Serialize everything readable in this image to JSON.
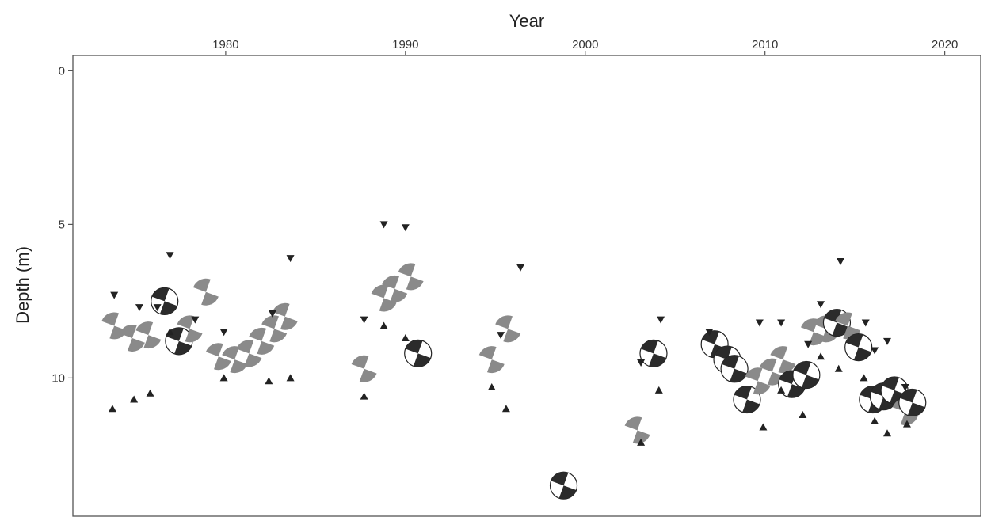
{
  "chart_data": {
    "type": "scatter",
    "title": "",
    "xlabel": "Year",
    "ylabel": "Depth (m)",
    "xlim": [
      1971.5,
      2022
    ],
    "ylim": [
      14.5,
      -0.5
    ],
    "y_inverted": true,
    "x_axis_position": "top",
    "grid": false,
    "legend": "none",
    "x_ticks": [
      1980,
      1990,
      2000,
      2010,
      2020
    ],
    "x_tick_labels": [
      "1980",
      "1990",
      "2000",
      "2010",
      "2020"
    ],
    "y_ticks": [
      0,
      5,
      10
    ],
    "y_tick_labels": [
      "0",
      "5",
      "10"
    ],
    "colors": {
      "dark": "#2b2b2b",
      "grey": "#8a8a8a",
      "marker": "#222222"
    },
    "series": [
      {
        "marker": "focal-mechanism",
        "points": [
          {
            "x": 1973.8,
            "y": 8.3,
            "style": "grey"
          },
          {
            "x": 1974.8,
            "y": 8.7,
            "style": "grey"
          },
          {
            "x": 1975.7,
            "y": 8.6,
            "style": "grey"
          },
          {
            "x": 1976.6,
            "y": 7.5,
            "style": "dark"
          },
          {
            "x": 1977.4,
            "y": 8.8,
            "style": "dark"
          },
          {
            "x": 1978.0,
            "y": 8.4,
            "style": "grey"
          },
          {
            "x": 1978.9,
            "y": 7.2,
            "style": "grey"
          },
          {
            "x": 1979.6,
            "y": 9.3,
            "style": "grey"
          },
          {
            "x": 1980.5,
            "y": 9.4,
            "style": "grey"
          },
          {
            "x": 1981.3,
            "y": 9.2,
            "style": "grey"
          },
          {
            "x": 1982.0,
            "y": 8.8,
            "style": "grey"
          },
          {
            "x": 1982.7,
            "y": 8.4,
            "style": "grey"
          },
          {
            "x": 1983.3,
            "y": 8.0,
            "style": "grey"
          },
          {
            "x": 1987.7,
            "y": 9.7,
            "style": "grey"
          },
          {
            "x": 1988.8,
            "y": 7.4,
            "style": "grey"
          },
          {
            "x": 1989.4,
            "y": 7.1,
            "style": "grey"
          },
          {
            "x": 1990.3,
            "y": 6.7,
            "style": "grey"
          },
          {
            "x": 1990.7,
            "y": 9.2,
            "style": "dark"
          },
          {
            "x": 1994.8,
            "y": 9.4,
            "style": "grey"
          },
          {
            "x": 1995.7,
            "y": 8.4,
            "style": "grey"
          },
          {
            "x": 1998.8,
            "y": 13.5,
            "style": "dark"
          },
          {
            "x": 2002.9,
            "y": 11.7,
            "style": "grey"
          },
          {
            "x": 2003.8,
            "y": 9.2,
            "style": "dark"
          },
          {
            "x": 2007.2,
            "y": 8.9,
            "style": "dark"
          },
          {
            "x": 2007.9,
            "y": 9.4,
            "style": "dark"
          },
          {
            "x": 2008.3,
            "y": 9.7,
            "style": "dark"
          },
          {
            "x": 2009.0,
            "y": 10.7,
            "style": "dark"
          },
          {
            "x": 2009.6,
            "y": 10.1,
            "style": "grey"
          },
          {
            "x": 2010.4,
            "y": 9.8,
            "style": "grey"
          },
          {
            "x": 2011.0,
            "y": 9.4,
            "style": "grey"
          },
          {
            "x": 2011.5,
            "y": 10.2,
            "style": "dark"
          },
          {
            "x": 2012.3,
            "y": 9.9,
            "style": "dark"
          },
          {
            "x": 2012.7,
            "y": 8.5,
            "style": "grey"
          },
          {
            "x": 2013.4,
            "y": 8.4,
            "style": "grey"
          },
          {
            "x": 2014.0,
            "y": 8.2,
            "style": "dark"
          },
          {
            "x": 2014.6,
            "y": 8.3,
            "style": "grey"
          },
          {
            "x": 2015.2,
            "y": 9.0,
            "style": "dark"
          },
          {
            "x": 2016.0,
            "y": 10.7,
            "style": "dark"
          },
          {
            "x": 2016.6,
            "y": 10.6,
            "style": "dark"
          },
          {
            "x": 2017.2,
            "y": 10.4,
            "style": "dark"
          },
          {
            "x": 2017.8,
            "y": 11.1,
            "style": "grey"
          },
          {
            "x": 2018.2,
            "y": 10.8,
            "style": "dark"
          }
        ]
      },
      {
        "marker": "triangle-down",
        "points": [
          {
            "x": 1973.8,
            "y": 7.3
          },
          {
            "x": 1975.2,
            "y": 7.7
          },
          {
            "x": 1976.2,
            "y": 7.7
          },
          {
            "x": 1976.9,
            "y": 6.0
          },
          {
            "x": 1978.3,
            "y": 8.1
          },
          {
            "x": 1979.9,
            "y": 8.5
          },
          {
            "x": 1982.6,
            "y": 7.9
          },
          {
            "x": 1983.6,
            "y": 6.1
          },
          {
            "x": 1987.7,
            "y": 8.1
          },
          {
            "x": 1988.8,
            "y": 5.0
          },
          {
            "x": 1990.0,
            "y": 5.1
          },
          {
            "x": 1995.3,
            "y": 8.6
          },
          {
            "x": 1996.4,
            "y": 6.4
          },
          {
            "x": 2003.1,
            "y": 9.5
          },
          {
            "x": 2004.2,
            "y": 8.1
          },
          {
            "x": 2006.9,
            "y": 8.5
          },
          {
            "x": 2009.7,
            "y": 8.2
          },
          {
            "x": 2010.9,
            "y": 8.2
          },
          {
            "x": 2012.4,
            "y": 8.9
          },
          {
            "x": 2013.1,
            "y": 7.6
          },
          {
            "x": 2014.2,
            "y": 6.2
          },
          {
            "x": 2015.6,
            "y": 8.2
          },
          {
            "x": 2016.1,
            "y": 9.1
          },
          {
            "x": 2016.8,
            "y": 8.8
          },
          {
            "x": 2017.8,
            "y": 10.3
          }
        ]
      },
      {
        "marker": "triangle-up",
        "points": [
          {
            "x": 1973.7,
            "y": 11.0
          },
          {
            "x": 1974.9,
            "y": 10.7
          },
          {
            "x": 1975.8,
            "y": 10.5
          },
          {
            "x": 1976.9,
            "y": 8.5
          },
          {
            "x": 1979.9,
            "y": 10.0
          },
          {
            "x": 1982.4,
            "y": 10.1
          },
          {
            "x": 1983.6,
            "y": 10.0
          },
          {
            "x": 1987.7,
            "y": 10.6
          },
          {
            "x": 1988.8,
            "y": 8.3
          },
          {
            "x": 1990.0,
            "y": 8.7
          },
          {
            "x": 1994.8,
            "y": 10.3
          },
          {
            "x": 1995.6,
            "y": 11.0
          },
          {
            "x": 2003.1,
            "y": 12.1
          },
          {
            "x": 2004.1,
            "y": 10.4
          },
          {
            "x": 2009.9,
            "y": 11.6
          },
          {
            "x": 2010.9,
            "y": 10.4
          },
          {
            "x": 2012.1,
            "y": 11.2
          },
          {
            "x": 2013.1,
            "y": 9.3
          },
          {
            "x": 2014.1,
            "y": 9.7
          },
          {
            "x": 2015.5,
            "y": 10.0
          },
          {
            "x": 2016.1,
            "y": 11.4
          },
          {
            "x": 2016.8,
            "y": 11.8
          },
          {
            "x": 2017.9,
            "y": 11.5
          }
        ]
      }
    ]
  }
}
